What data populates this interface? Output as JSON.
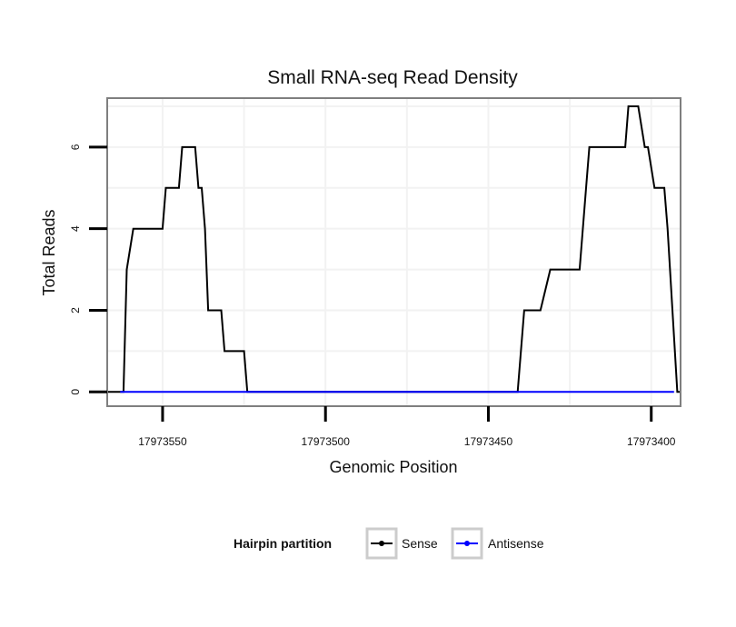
{
  "chart_data": {
    "type": "line",
    "title": "Small RNA-seq Read Density",
    "xlabel": "Genomic Position",
    "ylabel": "Total Reads",
    "xlim": [
      17973567,
      17973391
    ],
    "ylim": [
      -0.35,
      7.2
    ],
    "x_reversed": true,
    "x_ticks": [
      17973550,
      17973500,
      17973450,
      17973400
    ],
    "x_tick_labels": [
      "17973550",
      "17973500",
      "17973450",
      "17973400"
    ],
    "y_ticks": [
      0,
      2,
      4,
      6
    ],
    "y_tick_labels": [
      "0",
      "2",
      "4",
      "6"
    ],
    "grid": true,
    "legend_position": "bottom",
    "legend_title": "Hairpin partition",
    "series": [
      {
        "name": "Sense",
        "color": "#000000",
        "x": [
          17973567,
          17973563,
          17973562,
          17973561,
          17973559,
          17973555,
          17973550,
          17973549,
          17973545,
          17973544,
          17973540,
          17973539,
          17973538,
          17973537,
          17973536,
          17973532,
          17973531,
          17973529,
          17973525,
          17973524,
          17973518,
          17973517,
          17973508,
          17973483,
          17973458,
          17973442,
          17973441,
          17973439,
          17973435,
          17973434,
          17973431,
          17973430,
          17973422,
          17973420,
          17973419,
          17973408,
          17973407,
          17973404,
          17973402,
          17973401,
          17973399,
          17973396,
          17973395,
          17973392,
          17973391
        ],
        "values": [
          0,
          0,
          0,
          3,
          4,
          4,
          4,
          5,
          5,
          6,
          6,
          5,
          5,
          4,
          2,
          2,
          1,
          1,
          1,
          0,
          0,
          0,
          0,
          0,
          0,
          0,
          0,
          2,
          2,
          2,
          3,
          3,
          3,
          5,
          6,
          6,
          7,
          7,
          6,
          6,
          5,
          5,
          4,
          0,
          0
        ]
      },
      {
        "name": "Antisense",
        "color": "#0000ff",
        "x": [
          17973563,
          17973393
        ],
        "values": [
          0,
          0
        ]
      }
    ]
  }
}
